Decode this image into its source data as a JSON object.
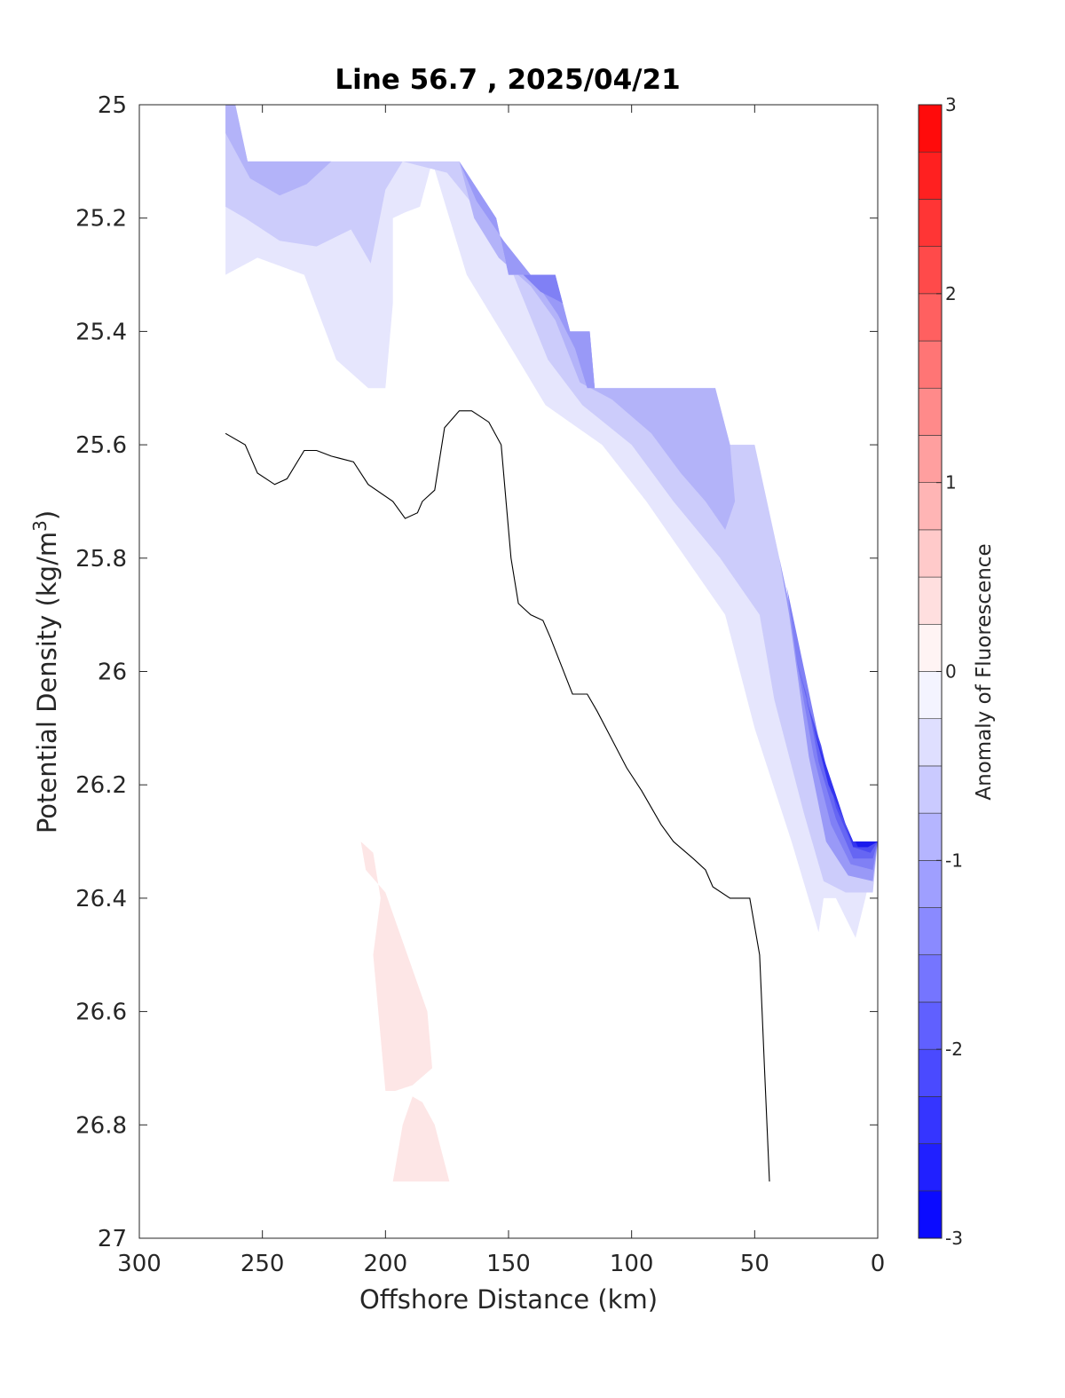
{
  "chart_data": {
    "type": "contour",
    "title": "Line 56.7 , 2025/04/21",
    "xlabel": "Offshore Distance (km)",
    "ylabel_main": "Potential Density (kg/m",
    "ylabel_sup": "3",
    "ylabel_tail": ")",
    "xlim": [
      300,
      0
    ],
    "ylim": [
      27,
      25
    ],
    "y_reversed": true,
    "x_reversed": true,
    "xticks": [
      300,
      250,
      200,
      150,
      100,
      50,
      0
    ],
    "xtick_labels": [
      "300",
      "250",
      "200",
      "150",
      "100",
      "50",
      "0"
    ],
    "yticks": [
      25,
      25.2,
      25.4,
      25.6,
      25.8,
      26,
      26.2,
      26.4,
      26.6,
      26.8,
      27
    ],
    "ytick_labels": [
      "25",
      "25.2",
      "25.4",
      "25.6",
      "25.8",
      "26",
      "26.2",
      "26.4",
      "26.6",
      "26.8",
      "27"
    ],
    "grid": false,
    "colorbar": {
      "label": "Anomaly of Fluorescence",
      "range": [
        -3,
        3
      ],
      "step": 0.25,
      "ticks": [
        -3,
        -2,
        -1,
        0,
        1,
        2,
        3
      ],
      "tick_labels": [
        "-3",
        "-2",
        "-1",
        "0",
        "1",
        "2",
        "3"
      ],
      "colors": {
        "negative_end": "#0000ff",
        "zero": "#ffffff",
        "positive_end": "#ff0000"
      }
    },
    "contour_regions": [
      {
        "level": -0.25,
        "color": "#e6e6fd",
        "points": [
          [
            265,
            25.0
          ],
          [
            261,
            25.0
          ],
          [
            256,
            25.1
          ],
          [
            170,
            25.1
          ],
          [
            155,
            25.2
          ],
          [
            150,
            25.3
          ],
          [
            131,
            25.3
          ],
          [
            125,
            25.4
          ],
          [
            117,
            25.4
          ],
          [
            115,
            25.5
          ],
          [
            66,
            25.5
          ],
          [
            60,
            25.6
          ],
          [
            50,
            25.6
          ],
          [
            40,
            25.8
          ],
          [
            20,
            26.2
          ],
          [
            10,
            26.3
          ],
          [
            0,
            26.3
          ],
          [
            5,
            26.4
          ],
          [
            9,
            26.47
          ],
          [
            17,
            26.4
          ],
          [
            22,
            26.4
          ],
          [
            24,
            26.46
          ],
          [
            35,
            26.3
          ],
          [
            50,
            26.1
          ],
          [
            62,
            25.9
          ],
          [
            78,
            25.8
          ],
          [
            94,
            25.7
          ],
          [
            112,
            25.6
          ],
          [
            135,
            25.53
          ],
          [
            153,
            25.4
          ],
          [
            167,
            25.3
          ],
          [
            174,
            25.2
          ],
          [
            181,
            25.1
          ],
          [
            186,
            25.18
          ],
          [
            192,
            25.19
          ],
          [
            197,
            25.2
          ],
          [
            197,
            25.35
          ],
          [
            200,
            25.5
          ],
          [
            207,
            25.5
          ],
          [
            220,
            25.45
          ],
          [
            233,
            25.3
          ],
          [
            252,
            25.27
          ],
          [
            265,
            25.3
          ]
        ]
      },
      {
        "level": -0.5,
        "color": "#ccccfb",
        "points": [
          [
            265,
            25.0
          ],
          [
            261,
            25.0
          ],
          [
            256,
            25.1
          ],
          [
            170,
            25.1
          ],
          [
            155,
            25.2
          ],
          [
            150,
            25.3
          ],
          [
            131,
            25.3
          ],
          [
            125,
            25.4
          ],
          [
            117,
            25.4
          ],
          [
            115,
            25.5
          ],
          [
            66,
            25.5
          ],
          [
            60,
            25.6
          ],
          [
            50,
            25.6
          ],
          [
            40,
            25.8
          ],
          [
            20,
            26.2
          ],
          [
            10,
            26.3
          ],
          [
            0,
            26.3
          ],
          [
            2,
            26.39
          ],
          [
            13,
            26.39
          ],
          [
            22,
            26.37
          ],
          [
            30,
            26.25
          ],
          [
            42,
            26.05
          ],
          [
            48,
            25.9
          ],
          [
            64,
            25.8
          ],
          [
            83,
            25.7
          ],
          [
            100,
            25.6
          ],
          [
            120,
            25.53
          ],
          [
            134,
            25.45
          ],
          [
            148,
            25.3
          ],
          [
            160,
            25.2
          ],
          [
            175,
            25.12
          ],
          [
            193,
            25.1
          ],
          [
            200,
            25.15
          ],
          [
            206,
            25.28
          ],
          [
            214,
            25.22
          ],
          [
            228,
            25.25
          ],
          [
            243,
            25.24
          ],
          [
            257,
            25.2
          ],
          [
            265,
            25.18
          ]
        ]
      },
      {
        "level": -0.75,
        "color": "#b3b3f9",
        "points": [
          [
            265,
            25.0
          ],
          [
            261,
            25.0
          ],
          [
            256,
            25.1
          ],
          [
            222,
            25.1
          ],
          [
            232,
            25.14
          ],
          [
            243,
            25.16
          ],
          [
            255,
            25.13
          ],
          [
            265,
            25.05
          ]
        ]
      },
      {
        "level": -0.75,
        "color": "#b3b3f9",
        "points": [
          [
            170,
            25.1
          ],
          [
            155,
            25.2
          ],
          [
            150,
            25.3
          ],
          [
            131,
            25.3
          ],
          [
            125,
            25.4
          ],
          [
            117,
            25.4
          ],
          [
            115,
            25.5
          ],
          [
            66,
            25.5
          ],
          [
            60,
            25.6
          ],
          [
            58,
            25.7
          ],
          [
            62,
            25.75
          ],
          [
            70,
            25.7
          ],
          [
            80,
            25.65
          ],
          [
            92,
            25.58
          ],
          [
            108,
            25.52
          ],
          [
            121,
            25.49
          ],
          [
            131,
            25.38
          ],
          [
            141,
            25.32
          ],
          [
            154,
            25.27
          ],
          [
            164,
            25.2
          ]
        ]
      },
      {
        "level": -1.0,
        "color": "#9999f7",
        "points": [
          [
            170,
            25.1
          ],
          [
            155,
            25.2
          ],
          [
            150,
            25.3
          ],
          [
            131,
            25.3
          ],
          [
            125,
            25.4
          ],
          [
            117,
            25.4
          ],
          [
            115,
            25.5
          ],
          [
            118,
            25.5
          ],
          [
            123,
            25.43
          ],
          [
            130,
            25.37
          ],
          [
            141,
            25.3
          ],
          [
            152,
            25.24
          ],
          [
            163,
            25.17
          ]
        ]
      },
      {
        "level": -1.25,
        "color": "#8080f5",
        "points": [
          [
            150,
            25.3
          ],
          [
            131,
            25.3
          ],
          [
            128,
            25.35
          ],
          [
            137,
            25.33
          ],
          [
            144,
            25.3
          ]
        ]
      },
      {
        "level": -1.0,
        "color": "#9999f7",
        "points": [
          [
            40,
            25.8
          ],
          [
            20,
            26.2
          ],
          [
            10,
            26.3
          ],
          [
            0,
            26.3
          ],
          [
            2,
            26.37
          ],
          [
            12,
            26.36
          ],
          [
            21,
            26.3
          ],
          [
            28,
            26.15
          ],
          [
            36,
            25.9
          ]
        ]
      },
      {
        "level": -1.25,
        "color": "#8080f5",
        "points": [
          [
            37,
            25.85
          ],
          [
            20,
            26.2
          ],
          [
            10,
            26.3
          ],
          [
            0,
            26.3
          ],
          [
            2,
            26.35
          ],
          [
            11,
            26.34
          ],
          [
            19,
            26.27
          ],
          [
            26,
            26.15
          ],
          [
            33,
            25.98
          ]
        ]
      },
      {
        "level": -1.5,
        "color": "#6666f3",
        "points": [
          [
            33,
            25.98
          ],
          [
            20,
            26.2
          ],
          [
            10,
            26.3
          ],
          [
            0,
            26.3
          ],
          [
            2,
            26.33
          ],
          [
            10,
            26.33
          ],
          [
            17,
            26.26
          ],
          [
            24,
            26.16
          ],
          [
            29,
            26.04
          ]
        ]
      },
      {
        "level": -1.75,
        "color": "#4d4df1",
        "points": [
          [
            29,
            26.05
          ],
          [
            20,
            26.2
          ],
          [
            10,
            26.3
          ],
          [
            0,
            26.3
          ],
          [
            3,
            26.32
          ],
          [
            10,
            26.31
          ],
          [
            17,
            26.24
          ],
          [
            23,
            26.13
          ]
        ]
      },
      {
        "level": -2.0,
        "color": "#3333ef",
        "points": [
          [
            26,
            26.1
          ],
          [
            20,
            26.2
          ],
          [
            10,
            26.3
          ],
          [
            0,
            26.3
          ],
          [
            4,
            26.31
          ],
          [
            10,
            26.31
          ],
          [
            16,
            26.23
          ]
        ]
      },
      {
        "level": -2.5,
        "color": "#1a1aed",
        "points": [
          [
            9,
            26.3
          ],
          [
            0,
            26.3
          ],
          [
            4,
            26.31
          ],
          [
            8,
            26.31
          ]
        ]
      },
      {
        "level": 0.25,
        "color": "#fde6e6",
        "points": [
          [
            210,
            26.3
          ],
          [
            205,
            26.32
          ],
          [
            202,
            26.4
          ],
          [
            205,
            26.5
          ],
          [
            200,
            26.74
          ],
          [
            196,
            26.74
          ],
          [
            189,
            26.73
          ],
          [
            181,
            26.7
          ],
          [
            183,
            26.6
          ],
          [
            200,
            26.39
          ],
          [
            208,
            26.35
          ]
        ]
      },
      {
        "level": 0.25,
        "color": "#fde6e6",
        "points": [
          [
            189,
            26.75
          ],
          [
            185,
            26.76
          ],
          [
            180,
            26.8
          ],
          [
            174,
            26.9
          ],
          [
            197,
            26.9
          ],
          [
            193,
            26.8
          ]
        ]
      }
    ],
    "zero_contour": [
      [
        265,
        25.58
      ],
      [
        257,
        25.6
      ],
      [
        252,
        25.65
      ],
      [
        245,
        25.67
      ],
      [
        240,
        25.66
      ],
      [
        233,
        25.61
      ],
      [
        228,
        25.61
      ],
      [
        222,
        25.62
      ],
      [
        213,
        25.63
      ],
      [
        207,
        25.67
      ],
      [
        197,
        25.7
      ],
      [
        192,
        25.73
      ],
      [
        187,
        25.72
      ],
      [
        185,
        25.7
      ],
      [
        180,
        25.68
      ],
      [
        176,
        25.57
      ],
      [
        170,
        25.54
      ],
      [
        165,
        25.54
      ],
      [
        158,
        25.56
      ],
      [
        153,
        25.6
      ],
      [
        151,
        25.7
      ],
      [
        149,
        25.8
      ],
      [
        146,
        25.88
      ],
      [
        141,
        25.9
      ],
      [
        136,
        25.91
      ],
      [
        133,
        25.94
      ],
      [
        124,
        26.04
      ],
      [
        118,
        26.04
      ],
      [
        114,
        26.07
      ],
      [
        108,
        26.12
      ],
      [
        102,
        26.17
      ],
      [
        96,
        26.21
      ],
      [
        88,
        26.27
      ],
      [
        83,
        26.3
      ],
      [
        75,
        26.33
      ],
      [
        70,
        26.35
      ],
      [
        67,
        26.38
      ],
      [
        60,
        26.4
      ],
      [
        52,
        26.4
      ],
      [
        48,
        26.5
      ],
      [
        47,
        26.6
      ],
      [
        46,
        26.7
      ],
      [
        44,
        26.9
      ]
    ]
  }
}
